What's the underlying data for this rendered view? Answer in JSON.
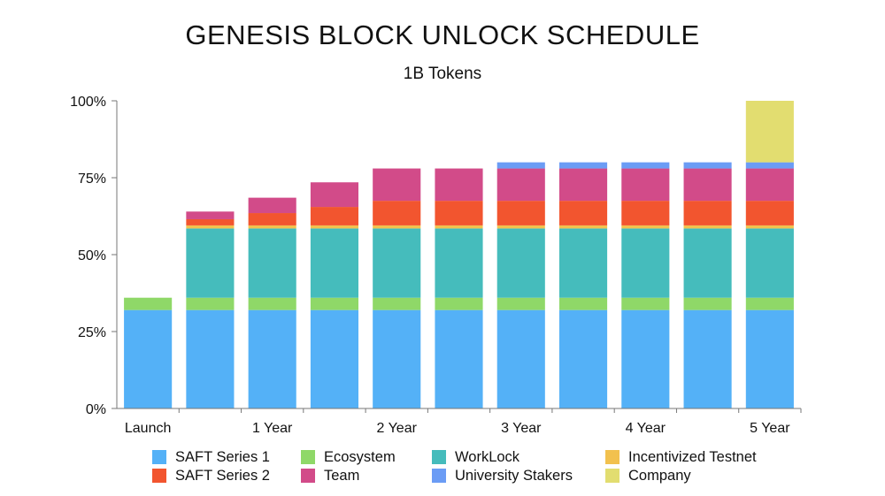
{
  "chart_data": {
    "type": "bar",
    "stacked": true,
    "title": "GENESIS BLOCK UNLOCK SCHEDULE",
    "subtitle": "1B Tokens",
    "xlabel": "",
    "ylabel": "",
    "ylim": [
      0,
      100
    ],
    "yticks": [
      "0%",
      "25%",
      "50%",
      "75%",
      "100%"
    ],
    "ytick_values": [
      0,
      25,
      50,
      75,
      100
    ],
    "categories": [
      "Launch",
      "",
      "1 Year",
      "",
      "2 Year",
      "",
      "3 Year",
      "",
      "4 Year",
      "",
      "5 Year"
    ],
    "legend_position": "bottom",
    "series": [
      {
        "name": "SAFT Series 1",
        "color": "#54b1f7",
        "values": [
          32,
          32,
          32,
          32,
          32,
          32,
          32,
          32,
          32,
          32,
          32
        ]
      },
      {
        "name": "Ecosystem",
        "color": "#8fd868",
        "values": [
          4,
          4,
          4,
          4,
          4,
          4,
          4,
          4,
          4,
          4,
          4
        ]
      },
      {
        "name": "WorkLock",
        "color": "#45bcbc",
        "values": [
          0,
          22.5,
          22.5,
          22.5,
          22.5,
          22.5,
          22.5,
          22.5,
          22.5,
          22.5,
          22.5
        ]
      },
      {
        "name": "Incentivized Testnet",
        "color": "#f2c14e",
        "values": [
          0,
          1,
          1,
          1,
          1,
          1,
          1,
          1,
          1,
          1,
          1
        ]
      },
      {
        "name": "SAFT Series 2",
        "color": "#f2552f",
        "values": [
          0,
          2,
          4,
          6,
          8,
          8,
          8,
          8,
          8,
          8,
          8
        ]
      },
      {
        "name": "Team",
        "color": "#d24b89",
        "values": [
          0,
          2.5,
          5,
          8,
          10.5,
          10.5,
          10.5,
          10.5,
          10.5,
          10.5,
          10.5
        ]
      },
      {
        "name": "University Stakers",
        "color": "#6b9cf5",
        "values": [
          0,
          0,
          0,
          0,
          0,
          0,
          2,
          2,
          2,
          2,
          2
        ]
      },
      {
        "name": "Company",
        "color": "#e2dd70",
        "values": [
          0,
          0,
          0,
          0,
          0,
          0,
          0,
          0,
          0,
          0,
          20
        ]
      }
    ],
    "legend_order": [
      "SAFT Series 1",
      "SAFT Series 2",
      "Ecosystem",
      "Team",
      "WorkLock",
      "University Stakers",
      "Incentivized Testnet",
      "Company"
    ]
  }
}
